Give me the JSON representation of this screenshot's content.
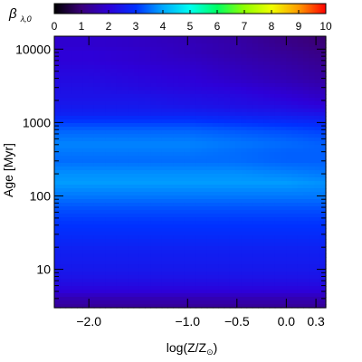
{
  "chart_data": {
    "type": "heatmap",
    "colorbar": {
      "label": "β",
      "label_subscript": "λ,0",
      "range": [
        0,
        10
      ],
      "ticks": [
        "0",
        "1",
        "2",
        "3",
        "4",
        "5",
        "6",
        "7",
        "8",
        "9",
        "10"
      ],
      "palette": [
        "#000000",
        "#3a007a",
        "#2d00d8",
        "#0030ff",
        "#00a8ff",
        "#00fff0",
        "#00ff62",
        "#90ff00",
        "#f0ff00",
        "#ff9a00",
        "#ff0000"
      ]
    },
    "xlabel_prefix": "log(Z/Z",
    "xlabel_sub": "⊙",
    "xlabel_suffix": ")",
    "ylabel_main": "Age",
    "ylabel_unit": "[Myr]",
    "xlim": [
      -2.35,
      0.4
    ],
    "ylim": [
      3,
      15000
    ],
    "yscale": "log",
    "x_ticks": [
      {
        "value": -2.0,
        "label": "−2.0"
      },
      {
        "value": -1.0,
        "label": "−1.0"
      },
      {
        "value": -0.5,
        "label": "−0.5"
      },
      {
        "value": 0.0,
        "label": "0.0"
      },
      {
        "value": 0.3,
        "label": "0.3"
      }
    ],
    "y_ticks": [
      {
        "value": 10,
        "label": "10"
      },
      {
        "value": 100,
        "label": "100"
      },
      {
        "value": 1000,
        "label": "1000"
      },
      {
        "value": 10000,
        "label": "10000"
      }
    ],
    "age_grid": [
      3,
      4,
      5,
      6,
      7,
      8,
      10,
      15,
      20,
      30,
      50,
      70,
      100,
      150,
      200,
      300,
      400,
      500,
      600,
      800,
      1000,
      1300,
      1700,
      2200,
      3000,
      4000,
      5500,
      7000,
      9000,
      11000,
      15000
    ],
    "metallicity_grid": [
      -2.35,
      -2.0,
      -1.5,
      -1.0,
      -0.5,
      0.0,
      0.4
    ],
    "beta_values": [
      [
        1.3,
        1.3,
        1.3,
        1.3,
        1.3,
        1.3,
        1.3
      ],
      [
        1.6,
        1.6,
        1.6,
        1.6,
        1.6,
        1.6,
        1.6
      ],
      [
        2.0,
        2.0,
        2.0,
        2.0,
        2.0,
        2.0,
        2.0
      ],
      [
        2.2,
        2.2,
        2.2,
        2.2,
        2.2,
        2.2,
        2.2
      ],
      [
        2.3,
        2.3,
        2.3,
        2.3,
        2.3,
        2.3,
        2.3
      ],
      [
        2.4,
        2.4,
        2.4,
        2.4,
        2.4,
        2.4,
        2.4
      ],
      [
        2.5,
        2.5,
        2.5,
        2.5,
        2.5,
        2.5,
        2.5
      ],
      [
        2.6,
        2.6,
        2.6,
        2.6,
        2.6,
        2.6,
        2.6
      ],
      [
        2.7,
        2.7,
        2.7,
        2.7,
        2.7,
        2.7,
        2.7
      ],
      [
        2.9,
        2.9,
        2.9,
        2.9,
        2.9,
        2.9,
        2.9
      ],
      [
        3.1,
        3.1,
        3.1,
        3.1,
        3.1,
        3.1,
        3.1
      ],
      [
        3.3,
        3.3,
        3.3,
        3.3,
        3.3,
        3.3,
        3.3
      ],
      [
        3.6,
        3.6,
        3.6,
        3.6,
        3.6,
        3.6,
        3.6
      ],
      [
        3.9,
        3.9,
        3.9,
        3.9,
        3.9,
        3.9,
        3.8
      ],
      [
        3.8,
        3.8,
        3.8,
        3.8,
        3.8,
        3.7,
        3.6
      ],
      [
        3.5,
        3.5,
        3.5,
        3.5,
        3.5,
        3.4,
        3.4
      ],
      [
        3.6,
        3.6,
        3.6,
        3.6,
        3.5,
        3.4,
        3.4
      ],
      [
        3.7,
        3.7,
        3.7,
        3.7,
        3.6,
        3.5,
        3.4
      ],
      [
        3.6,
        3.6,
        3.6,
        3.6,
        3.5,
        3.4,
        3.3
      ],
      [
        3.4,
        3.4,
        3.4,
        3.4,
        3.3,
        3.2,
        3.1
      ],
      [
        3.1,
        3.1,
        3.1,
        3.1,
        3.0,
        2.9,
        2.8
      ],
      [
        2.7,
        2.7,
        2.7,
        2.7,
        2.6,
        2.5,
        2.4
      ],
      [
        2.5,
        2.5,
        2.5,
        2.4,
        2.3,
        2.2,
        2.0
      ],
      [
        2.4,
        2.4,
        2.4,
        2.3,
        2.2,
        2.0,
        1.8
      ],
      [
        2.3,
        2.3,
        2.2,
        2.1,
        2.0,
        1.8,
        1.6
      ],
      [
        2.2,
        2.2,
        2.1,
        2.0,
        1.8,
        1.6,
        1.4
      ],
      [
        2.1,
        2.1,
        2.0,
        1.9,
        1.7,
        1.5,
        1.3
      ],
      [
        2.0,
        2.0,
        1.9,
        1.8,
        1.6,
        1.4,
        1.2
      ],
      [
        2.0,
        2.0,
        1.9,
        1.7,
        1.5,
        1.3,
        1.1
      ],
      [
        1.9,
        1.9,
        1.8,
        1.7,
        1.5,
        1.2,
        1.0
      ],
      [
        1.9,
        1.9,
        1.8,
        1.6,
        1.4,
        1.1,
        0.9
      ]
    ]
  }
}
